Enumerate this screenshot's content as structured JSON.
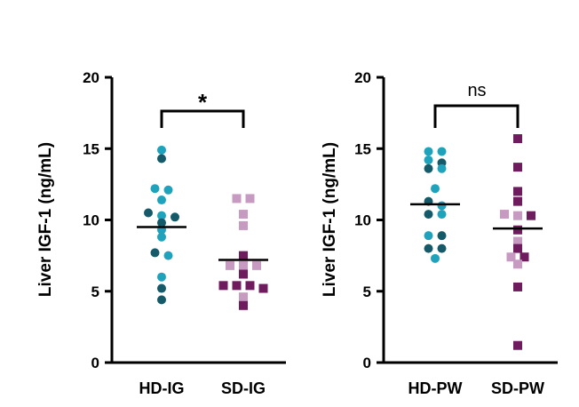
{
  "colors": {
    "hd_light": "#1fa3bd",
    "hd_dark": "#155a68",
    "sd_light": "#c79ac2",
    "sd_dark": "#6e1c5e",
    "axis": "#000000"
  },
  "chart_data": [
    {
      "type": "scatter",
      "style": "dot-plot with mean line",
      "ylabel": "Liver IGF-1 (ng/mL)",
      "ylim": [
        0,
        20
      ],
      "yticks": [
        "0",
        "5",
        "10",
        "15",
        "20"
      ],
      "categories": [
        "HD-IG",
        "SD-IG"
      ],
      "significance": "*",
      "series": [
        {
          "marker": "circle",
          "mean": 9.5,
          "points": [
            {
              "y": 14.9,
              "shade": "light"
            },
            {
              "y": 14.3,
              "shade": "dark"
            },
            {
              "y": 12.2,
              "shade": "light"
            },
            {
              "y": 12.1,
              "shade": "light"
            },
            {
              "y": 11.4,
              "shade": "light"
            },
            {
              "y": 10.5,
              "shade": "dark"
            },
            {
              "y": 10.3,
              "shade": "light"
            },
            {
              "y": 10.2,
              "shade": "dark"
            },
            {
              "y": 9.8,
              "shade": "dark"
            },
            {
              "y": 9.3,
              "shade": "light"
            },
            {
              "y": 8.8,
              "shade": "light"
            },
            {
              "y": 7.7,
              "shade": "dark"
            },
            {
              "y": 7.5,
              "shade": "light"
            },
            {
              "y": 6.0,
              "shade": "light"
            },
            {
              "y": 5.2,
              "shade": "dark"
            },
            {
              "y": 4.4,
              "shade": "dark"
            }
          ]
        },
        {
          "marker": "square",
          "mean": 7.2,
          "points": [
            {
              "y": 11.5,
              "shade": "light"
            },
            {
              "y": 11.5,
              "shade": "light"
            },
            {
              "y": 10.4,
              "shade": "light"
            },
            {
              "y": 9.6,
              "shade": "light"
            },
            {
              "y": 7.5,
              "shade": "dark"
            },
            {
              "y": 6.8,
              "shade": "light"
            },
            {
              "y": 6.8,
              "shade": "light"
            },
            {
              "y": 6.8,
              "shade": "light"
            },
            {
              "y": 6.2,
              "shade": "dark"
            },
            {
              "y": 5.4,
              "shade": "dark"
            },
            {
              "y": 5.4,
              "shade": "dark"
            },
            {
              "y": 5.4,
              "shade": "dark"
            },
            {
              "y": 5.2,
              "shade": "dark"
            },
            {
              "y": 4.6,
              "shade": "light"
            },
            {
              "y": 4.0,
              "shade": "dark"
            }
          ]
        }
      ]
    },
    {
      "type": "scatter",
      "style": "dot-plot with mean line",
      "ylabel": "Liver IGF-1 (ng/mL)",
      "ylim": [
        0,
        20
      ],
      "yticks": [
        "0",
        "5",
        "10",
        "15",
        "20"
      ],
      "categories": [
        "HD-PW",
        "SD-PW"
      ],
      "significance": "ns",
      "series": [
        {
          "marker": "circle",
          "mean": 11.1,
          "points": [
            {
              "y": 14.8,
              "shade": "light"
            },
            {
              "y": 14.8,
              "shade": "light"
            },
            {
              "y": 14.2,
              "shade": "light"
            },
            {
              "y": 14.0,
              "shade": "dark"
            },
            {
              "y": 13.6,
              "shade": "dark"
            },
            {
              "y": 13.6,
              "shade": "light"
            },
            {
              "y": 12.2,
              "shade": "light"
            },
            {
              "y": 11.3,
              "shade": "dark"
            },
            {
              "y": 11.0,
              "shade": "light"
            },
            {
              "y": 10.4,
              "shade": "dark"
            },
            {
              "y": 10.4,
              "shade": "light"
            },
            {
              "y": 8.9,
              "shade": "light"
            },
            {
              "y": 8.9,
              "shade": "dark"
            },
            {
              "y": 8.0,
              "shade": "dark"
            },
            {
              "y": 8.0,
              "shade": "dark"
            },
            {
              "y": 7.3,
              "shade": "light"
            }
          ]
        },
        {
          "marker": "square",
          "mean": 9.4,
          "points": [
            {
              "y": 15.7,
              "shade": "dark"
            },
            {
              "y": 13.7,
              "shade": "dark"
            },
            {
              "y": 12.0,
              "shade": "dark"
            },
            {
              "y": 11.3,
              "shade": "dark"
            },
            {
              "y": 10.4,
              "shade": "light"
            },
            {
              "y": 10.3,
              "shade": "light"
            },
            {
              "y": 10.3,
              "shade": "dark"
            },
            {
              "y": 9.3,
              "shade": "dark"
            },
            {
              "y": 8.5,
              "shade": "light"
            },
            {
              "y": 8.0,
              "shade": "dark"
            },
            {
              "y": 7.4,
              "shade": "light"
            },
            {
              "y": 7.4,
              "shade": "dark"
            },
            {
              "y": 6.9,
              "shade": "light"
            },
            {
              "y": 5.3,
              "shade": "dark"
            },
            {
              "y": 1.2,
              "shade": "dark"
            }
          ]
        }
      ]
    }
  ]
}
